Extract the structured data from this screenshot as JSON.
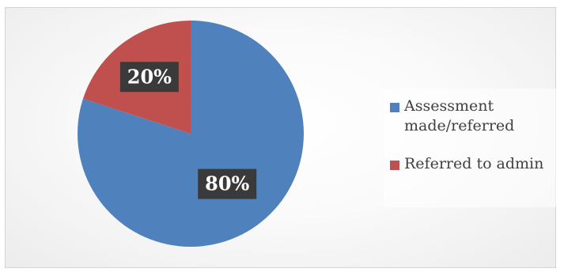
{
  "chart_data": {
    "type": "pie",
    "slices": [
      {
        "label": "Assessment made/referred",
        "value": 80,
        "display": "80%",
        "color": "#4f81bd"
      },
      {
        "label": "Referred to admin",
        "value": 20,
        "display": "20%",
        "color": "#c0504d"
      }
    ],
    "legend_position": "right",
    "start_angle_deg": 0,
    "direction": "clockwise"
  }
}
